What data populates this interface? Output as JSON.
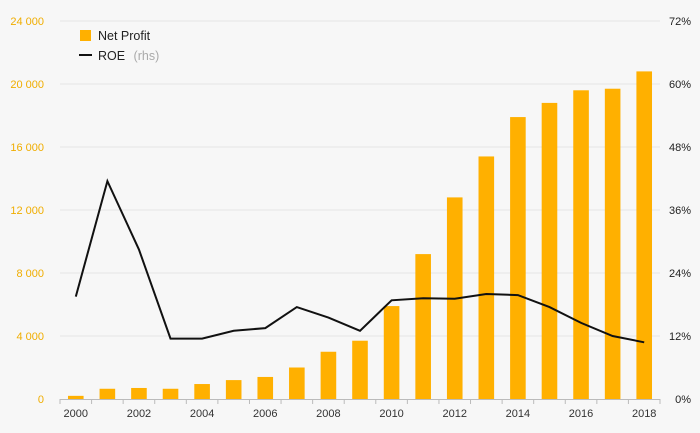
{
  "chart_data": {
    "type": "bar",
    "x": [
      2000,
      2001,
      2002,
      2003,
      2004,
      2005,
      2006,
      2007,
      2008,
      2009,
      2010,
      2011,
      2012,
      2013,
      2014,
      2015,
      2016,
      2017,
      2018
    ],
    "x_tick_labels": [
      "2000",
      "2002",
      "2004",
      "2006",
      "2008",
      "2010",
      "2012",
      "2014",
      "2016",
      "2018"
    ],
    "series": [
      {
        "name": "Net Profit",
        "type": "bar",
        "axis": "left",
        "color": "#ffb000",
        "values": [
          200,
          650,
          700,
          650,
          950,
          1200,
          1400,
          2000,
          3000,
          3700,
          5900,
          9200,
          12800,
          15400,
          17900,
          18800,
          19600,
          19700,
          20800
        ]
      },
      {
        "name": "ROE",
        "name_suffix": "(rhs)",
        "type": "line",
        "axis": "right",
        "color": "#111111",
        "values": [
          19.5,
          41.5,
          28.5,
          11.5,
          11.5,
          13,
          13.5,
          17.5,
          15.5,
          13,
          18.8,
          19.2,
          19.1,
          20,
          19.8,
          17.5,
          14.5,
          12,
          10.8
        ]
      }
    ],
    "y_left": {
      "ylim": [
        0,
        24000
      ],
      "ticks": [
        0,
        4000,
        8000,
        12000,
        16000,
        20000,
        24000
      ],
      "tick_labels": [
        "0",
        "4 000",
        "8 000",
        "12 000",
        "16 000",
        "20 000",
        "24 000"
      ],
      "color": "#f0ad00"
    },
    "y_right": {
      "ylim": [
        0,
        72
      ],
      "ticks": [
        0,
        12,
        24,
        36,
        48,
        60,
        72
      ],
      "tick_labels": [
        "0%",
        "12%",
        "24%",
        "36%",
        "48%",
        "60%",
        "72%"
      ]
    },
    "grid": true,
    "legend_position": "top-left"
  }
}
